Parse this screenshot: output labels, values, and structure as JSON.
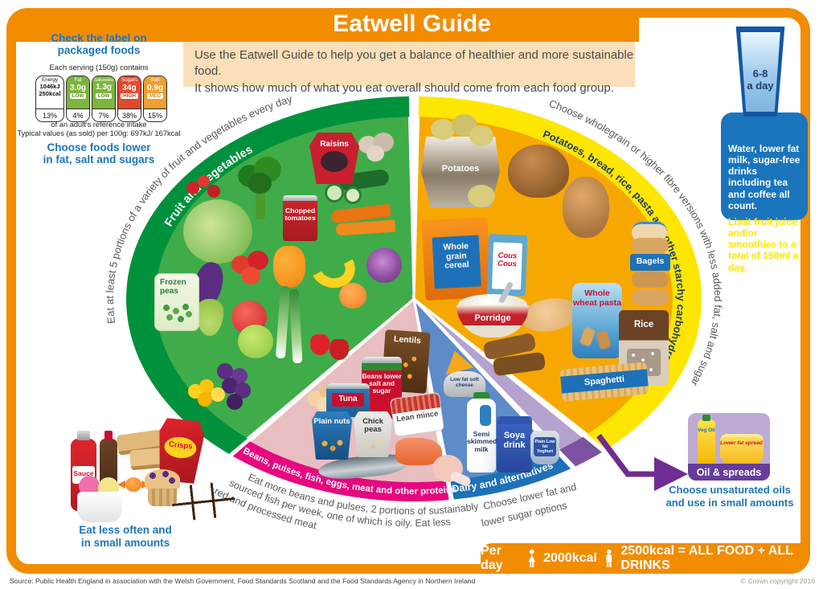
{
  "header": {
    "title": "Eatwell Guide",
    "intro_line1": "Use the Eatwell Guide to help you get a balance of healthier and more sustainable food.",
    "intro_line2": "It shows how much of what you eat overall should come from each food group."
  },
  "label_panel": {
    "heading_line1": "Check the label on",
    "heading_line2": "packaged foods",
    "serving_note": "Each serving (150g) contains",
    "columns": [
      {
        "name": "Energy",
        "value": "1046kJ",
        "value2": "250kcal",
        "percent": "13%"
      },
      {
        "name": "Fat",
        "value": "3.0g",
        "badge": "LOW",
        "percent": "4%"
      },
      {
        "name": "Saturates",
        "value": "1.3g",
        "badge": "LOW",
        "percent": "7%"
      },
      {
        "name": "Sugars",
        "value": "34g",
        "badge": "HIGH",
        "percent": "38%"
      },
      {
        "name": "Salt",
        "value": "0.9g",
        "badge": "MED",
        "percent": "15%"
      }
    ],
    "reference_note": "of an adult's reference intake",
    "typical_note": "Typical values (as sold) per 100g: 697kJ/ 167kcal",
    "advice_line1": "Choose foods lower",
    "advice_line2": "in fat, salt and sugars"
  },
  "hydration": {
    "glass_line1": "6-8",
    "glass_line2": "a day",
    "main_text": "Water, lower fat milk, sugar-free drinks including tea and coffee all count.",
    "limit_text": "Limit fruit juice and/or smoothies to a total of 150ml a day."
  },
  "segments": {
    "fruit_veg": {
      "outer_text": "Eat at least 5 portions of a variety of fruit and vegetables every day",
      "rim_label": "Fruit and vegetables",
      "items": {
        "raisins": "Raisins",
        "chopped_tomatoes": "Chopped tomatoes",
        "frozen_peas": "Frozen peas"
      }
    },
    "starchy": {
      "outer_text": "Choose wholegrain or higher fibre versions with less added fat, salt and sugar",
      "rim_label": "Potatoes, bread, rice, pasta and other starchy carbohydrates",
      "items": {
        "potatoes": "Potatoes",
        "wholegrain_cereal": "Whole grain cereal",
        "cous_cous": "Cous Cous",
        "porridge": "Porridge",
        "whole_wheat_pasta": "Whole wheat pasta",
        "bagels": "Bagels",
        "rice": "Rice",
        "spaghetti": "Spaghetti"
      }
    },
    "protein": {
      "rim_label": "Beans, pulses, fish, eggs, meat and other proteins",
      "note_line1": "Eat more beans and pulses, 2 portions of sustainably",
      "note_line2": "sourced fish per week, one of which is oily. Eat less",
      "note_line3": "red and processed meat",
      "items": {
        "lentils": "Lentils",
        "beans": "Beans lower salt and sugar",
        "tuna": "Tuna",
        "plain_nuts": "Plain nuts",
        "chick_peas": "Chick peas",
        "lean_mince": "Lean mince"
      }
    },
    "dairy": {
      "rim_label": "Dairy and alternatives",
      "note_line1": "Choose lower fat and",
      "note_line2": "lower sugar options",
      "items": {
        "soft_cheese": "Low fat soft cheese",
        "milk": "Semi skimmed milk",
        "soya_drink": "Soya drink",
        "yoghurt": "Plain Low fat Yoghurt"
      }
    },
    "oils": {
      "box_label": "Oil & spreads",
      "note_line1": "Choose unsaturated oils",
      "note_line2": "and use in small amounts",
      "items": {
        "veg_oil": "Veg Oil",
        "spread": "Lower fat spread"
      }
    }
  },
  "eat_less": {
    "note_line1": "Eat less often and",
    "note_line2": "in small amounts",
    "items": {
      "sauce": "Sauce",
      "crisps": "Crisps"
    }
  },
  "footer_bar": {
    "per_day": "Per day",
    "female_kcal": "2000kcal",
    "male_kcal": "2500kcal = ALL FOOD + ALL DRINKS"
  },
  "footer": {
    "source": "Source: Public Health England in association with the Welsh Government, Food Standards Scotland and the Food Standards Agency in Northern Ireland",
    "copyright": "© Crown copyright 2016"
  },
  "colors": {
    "brand_orange": "#F28C00",
    "heading_blue": "#1C75BC",
    "veg_green": "#3FAC49",
    "veg_green_dark": "#00913C",
    "carb_yellow": "#F7A800",
    "carb_yellow_bright": "#FFE600",
    "protein_pink": "#E8BEC1",
    "protein_magenta": "#E5087E",
    "dairy_blue": "#5D8CC9",
    "dairy_blue_dark": "#1D71B8",
    "oils_purple": "#B4A2CF"
  }
}
